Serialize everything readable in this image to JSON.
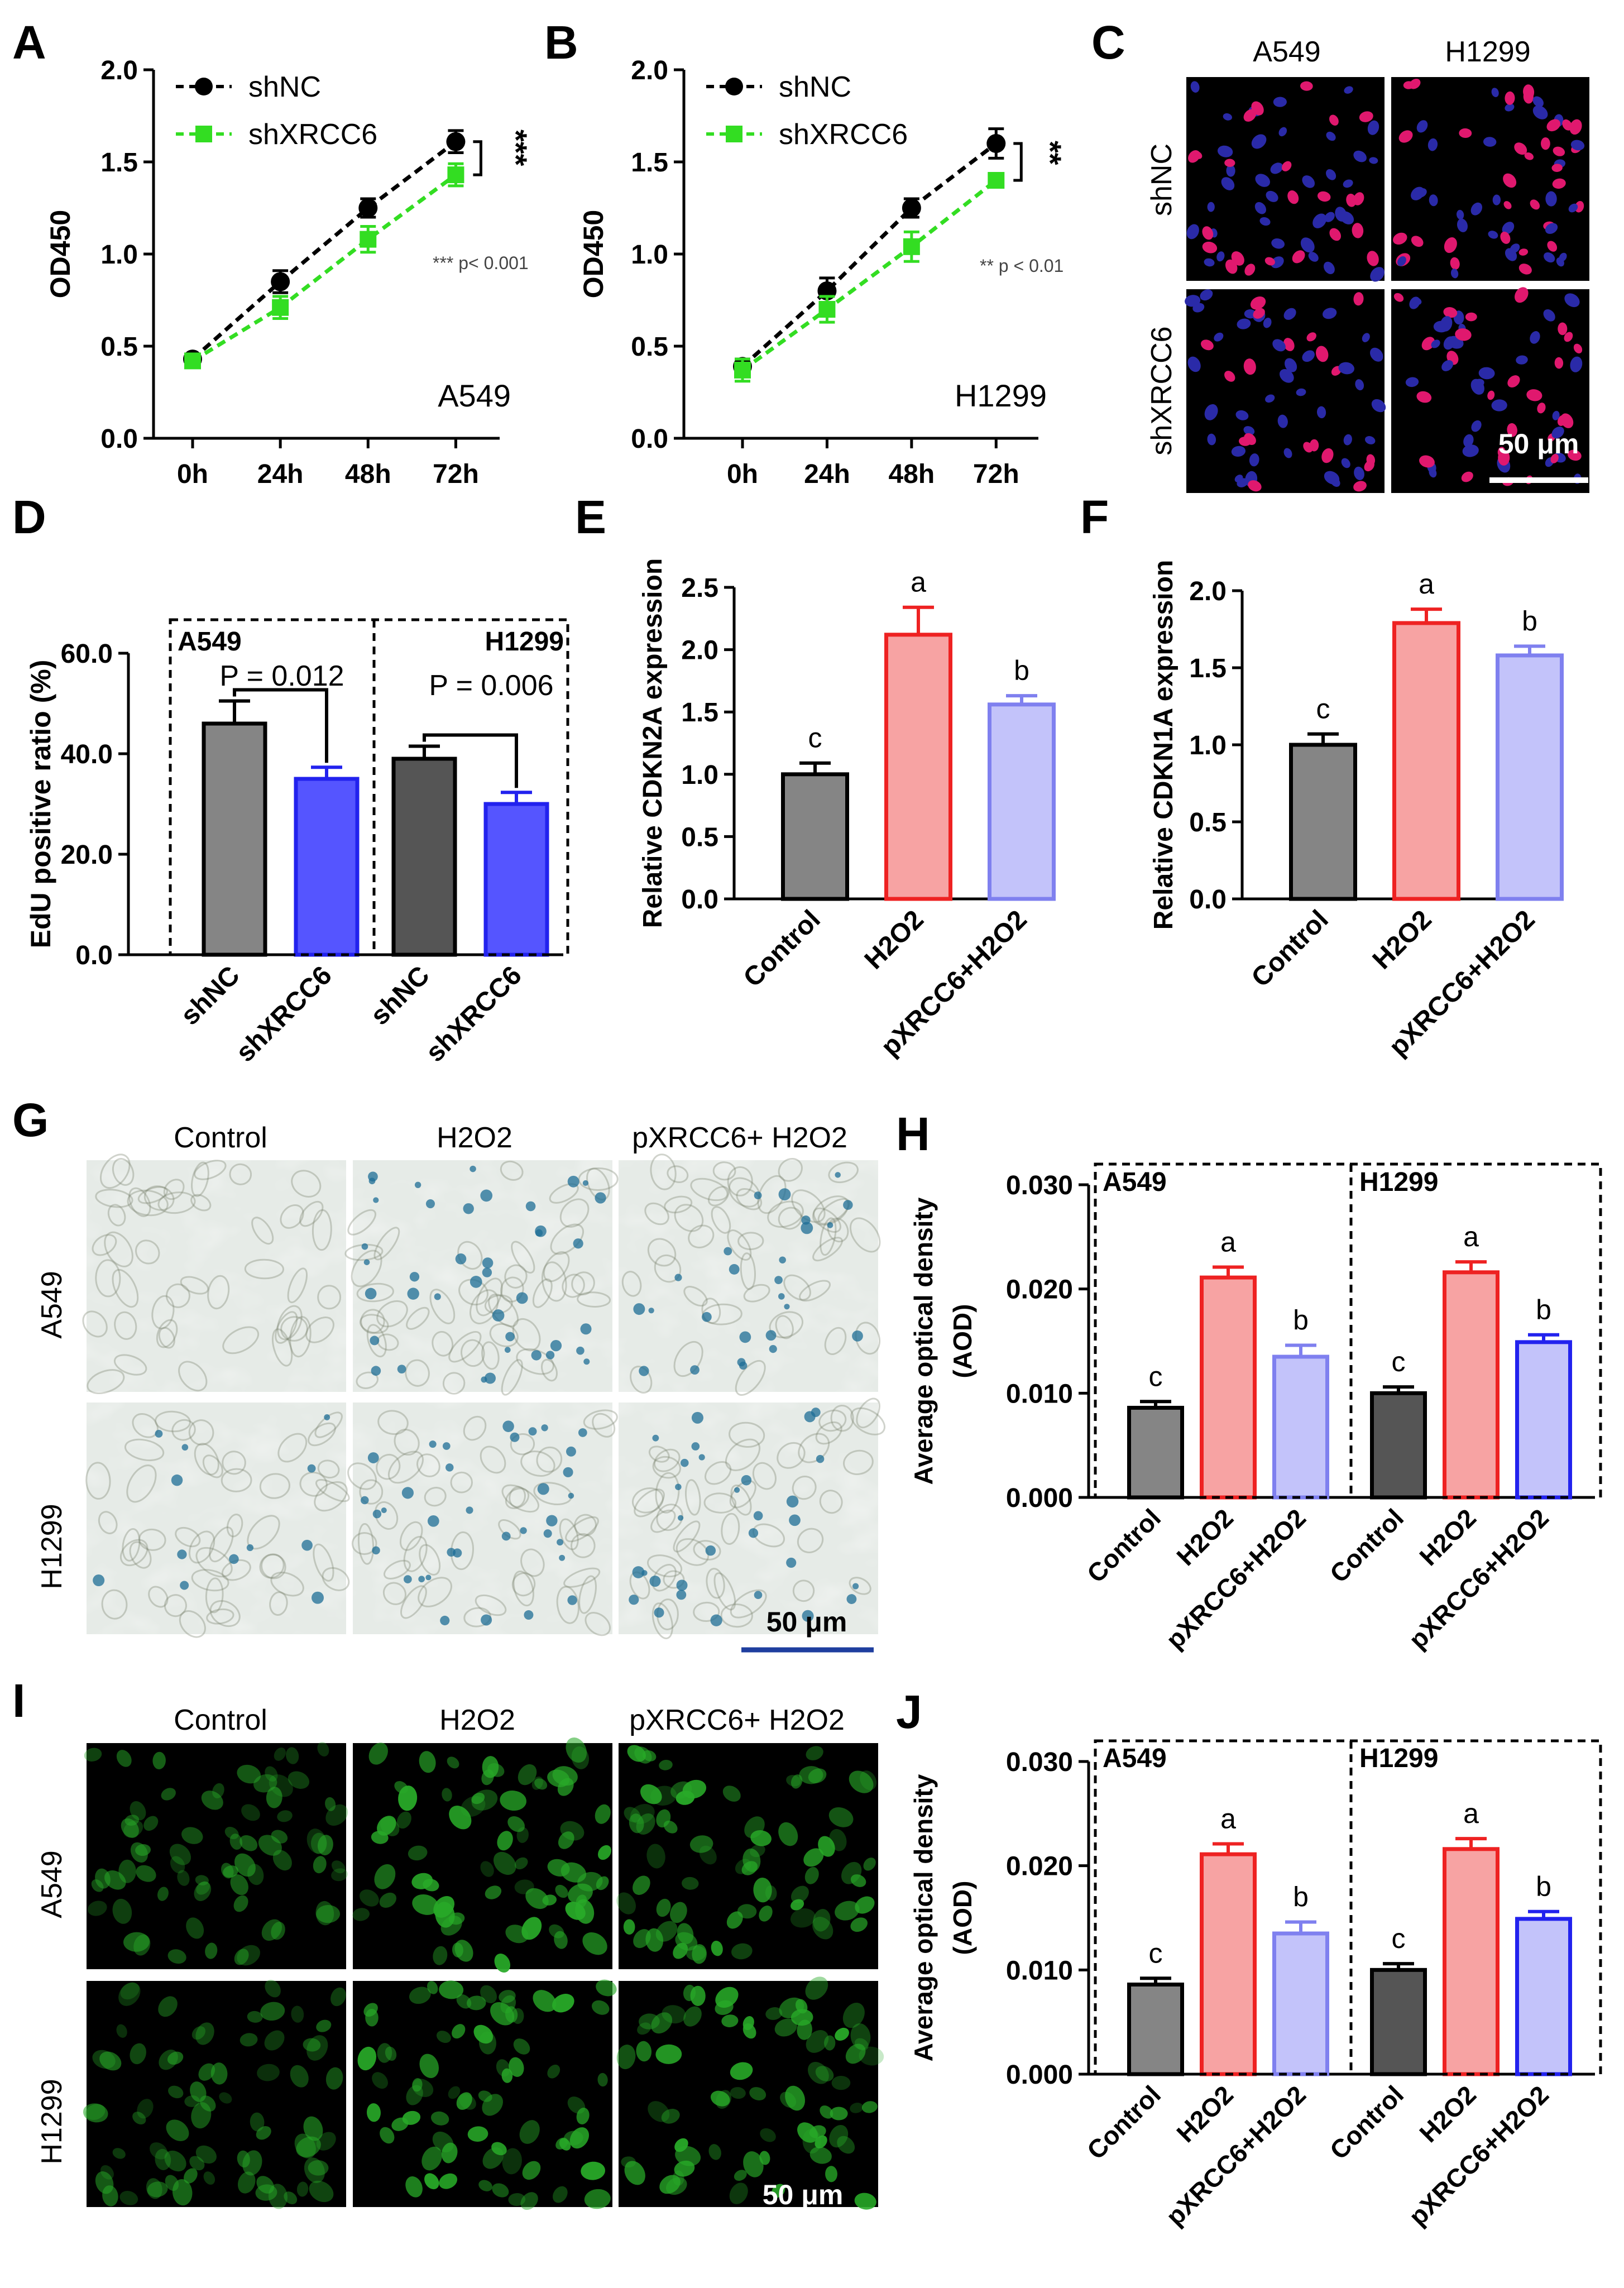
{
  "scale_bar_label": "50 μm",
  "colors": {
    "black": "#000000",
    "green": "#33dd22",
    "gray_dark": "#555555",
    "gray": "#858585",
    "blue": "#5555ff",
    "red": "#ee2222",
    "red_fill": "#f7a3a3",
    "lav": "#7f80ef",
    "lav_fill": "#c3c3fa",
    "blue_bar": "#2222ee",
    "scale_blue": "#1f3f9f"
  },
  "panels": {
    "A": {
      "letter": "A",
      "cell_label": "A549",
      "sig": "***",
      "pnote": "*** p< 0.001"
    },
    "B": {
      "letter": "B",
      "cell_label": "H1299",
      "sig": "**",
      "pnote": "** p < 0.01"
    },
    "C": {
      "letter": "C",
      "cols": [
        "A549",
        "H1299"
      ],
      "rows": [
        "shNC",
        "shXRCC6"
      ]
    },
    "D": {
      "letter": "D",
      "groups": [
        "A549",
        "H1299"
      ],
      "p_labels": [
        "P = 0.012",
        "P = 0.006"
      ]
    },
    "E": {
      "letter": "E"
    },
    "F": {
      "letter": "F"
    },
    "G": {
      "letter": "G",
      "cols": [
        "Control",
        "H2O2",
        "pXRCC6+ H2O2"
      ],
      "rows": [
        "A549",
        "H1299"
      ]
    },
    "H": {
      "letter": "H",
      "groups": [
        "A549",
        "H1299"
      ]
    },
    "I": {
      "letter": "I",
      "cols": [
        "Control",
        "H2O2",
        "pXRCC6+ H2O2"
      ],
      "rows": [
        "A549",
        "H1299"
      ]
    },
    "J": {
      "letter": "J",
      "groups": [
        "A549",
        "H1299"
      ]
    }
  },
  "chart_data": [
    {
      "panel": "A",
      "type": "line",
      "x": [
        "0h",
        "24h",
        "48h",
        "72h"
      ],
      "ylabel": "OD450",
      "ylim": [
        0,
        2.0
      ],
      "yticks": [
        "0.0",
        "0.5",
        "1.0",
        "1.5",
        "2.0"
      ],
      "legend": "top-left",
      "series": [
        {
          "name": "shNC",
          "values": [
            0.43,
            0.85,
            1.25,
            1.61
          ],
          "errors": [
            0.02,
            0.06,
            0.05,
            0.06
          ]
        },
        {
          "name": "shXRCC6",
          "values": [
            0.42,
            0.71,
            1.08,
            1.43
          ],
          "errors": [
            0.02,
            0.06,
            0.07,
            0.06
          ]
        }
      ]
    },
    {
      "panel": "B",
      "type": "line",
      "x": [
        "0h",
        "24h",
        "48h",
        "72h"
      ],
      "ylabel": "OD450",
      "ylim": [
        0,
        2.0
      ],
      "yticks": [
        "0.0",
        "0.5",
        "1.0",
        "1.5",
        "2.0"
      ],
      "legend": "top-left",
      "series": [
        {
          "name": "shNC",
          "values": [
            0.39,
            0.8,
            1.25,
            1.6
          ],
          "errors": [
            0.04,
            0.07,
            0.05,
            0.08
          ]
        },
        {
          "name": "shXRCC6",
          "values": [
            0.37,
            0.7,
            1.04,
            1.4
          ],
          "errors": [
            0.06,
            0.07,
            0.08,
            0.02
          ]
        }
      ]
    },
    {
      "panel": "D",
      "type": "bar",
      "categories": [
        "shNC",
        "shXRCC6",
        "shNC",
        "shXRCC6"
      ],
      "values": [
        46.0,
        35.0,
        39.0,
        30.0
      ],
      "errors": [
        4.5,
        2.3,
        2.5,
        2.3
      ],
      "ylabel": "EdU positive ratio (%)",
      "ylim": [
        0,
        60
      ],
      "yticks": [
        "0.0",
        "20.0",
        "40.0",
        "60.0"
      ]
    },
    {
      "panel": "E",
      "type": "bar",
      "categories": [
        "Control",
        "H2O2",
        "pXRCC6+H2O2"
      ],
      "values": [
        1.0,
        2.12,
        1.56
      ],
      "errors": [
        0.09,
        0.22,
        0.07
      ],
      "letters": [
        "c",
        "a",
        "b"
      ],
      "ylabel": "Relative CDKN2A expression",
      "ylim": [
        0,
        2.5
      ],
      "yticks": [
        "0.0",
        "0.5",
        "1.0",
        "1.5",
        "2.0",
        "2.5"
      ]
    },
    {
      "panel": "F",
      "type": "bar",
      "categories": [
        "Control",
        "H2O2",
        "pXRCC6+H2O2"
      ],
      "values": [
        1.0,
        1.79,
        1.58
      ],
      "errors": [
        0.07,
        0.09,
        0.06
      ],
      "letters": [
        "c",
        "a",
        "b"
      ],
      "ylabel": "Relative CDKN1A expression",
      "ylim": [
        0,
        2.0
      ],
      "yticks": [
        "0.0",
        "0.5",
        "1.0",
        "1.5",
        "2.0"
      ]
    },
    {
      "panel": "H",
      "type": "bar",
      "categories": [
        "Control",
        "H2O2",
        "pXRCC6+H2O2",
        "Control",
        "H2O2",
        "pXRCC6+H2O2"
      ],
      "values": [
        0.0086,
        0.0211,
        0.0135,
        0.01,
        0.0216,
        0.0149
      ],
      "errors": [
        0.0006,
        0.001,
        0.0011,
        0.0006,
        0.001,
        0.0007
      ],
      "letters": [
        "c",
        "a",
        "b",
        "c",
        "a",
        "b"
      ],
      "ylabel": "Average optical density (AOD)",
      "ylim": [
        0,
        0.03
      ],
      "yticks": [
        "0.000",
        "0.010",
        "0.020",
        "0.030"
      ]
    },
    {
      "panel": "J",
      "type": "bar",
      "categories": [
        "Control",
        "H2O2",
        "pXRCC6+H2O2",
        "Control",
        "H2O2",
        "pXRCC6+H2O2"
      ],
      "values": [
        0.0086,
        0.0211,
        0.0135,
        0.01,
        0.0216,
        0.0149
      ],
      "errors": [
        0.0006,
        0.001,
        0.0011,
        0.0006,
        0.001,
        0.0007
      ],
      "letters": [
        "c",
        "a",
        "b",
        "c",
        "a",
        "b"
      ],
      "ylabel": "Average optical density (AOD)",
      "ylim": [
        0,
        0.03
      ],
      "yticks": [
        "0.000",
        "0.010",
        "0.020",
        "0.030"
      ]
    }
  ]
}
